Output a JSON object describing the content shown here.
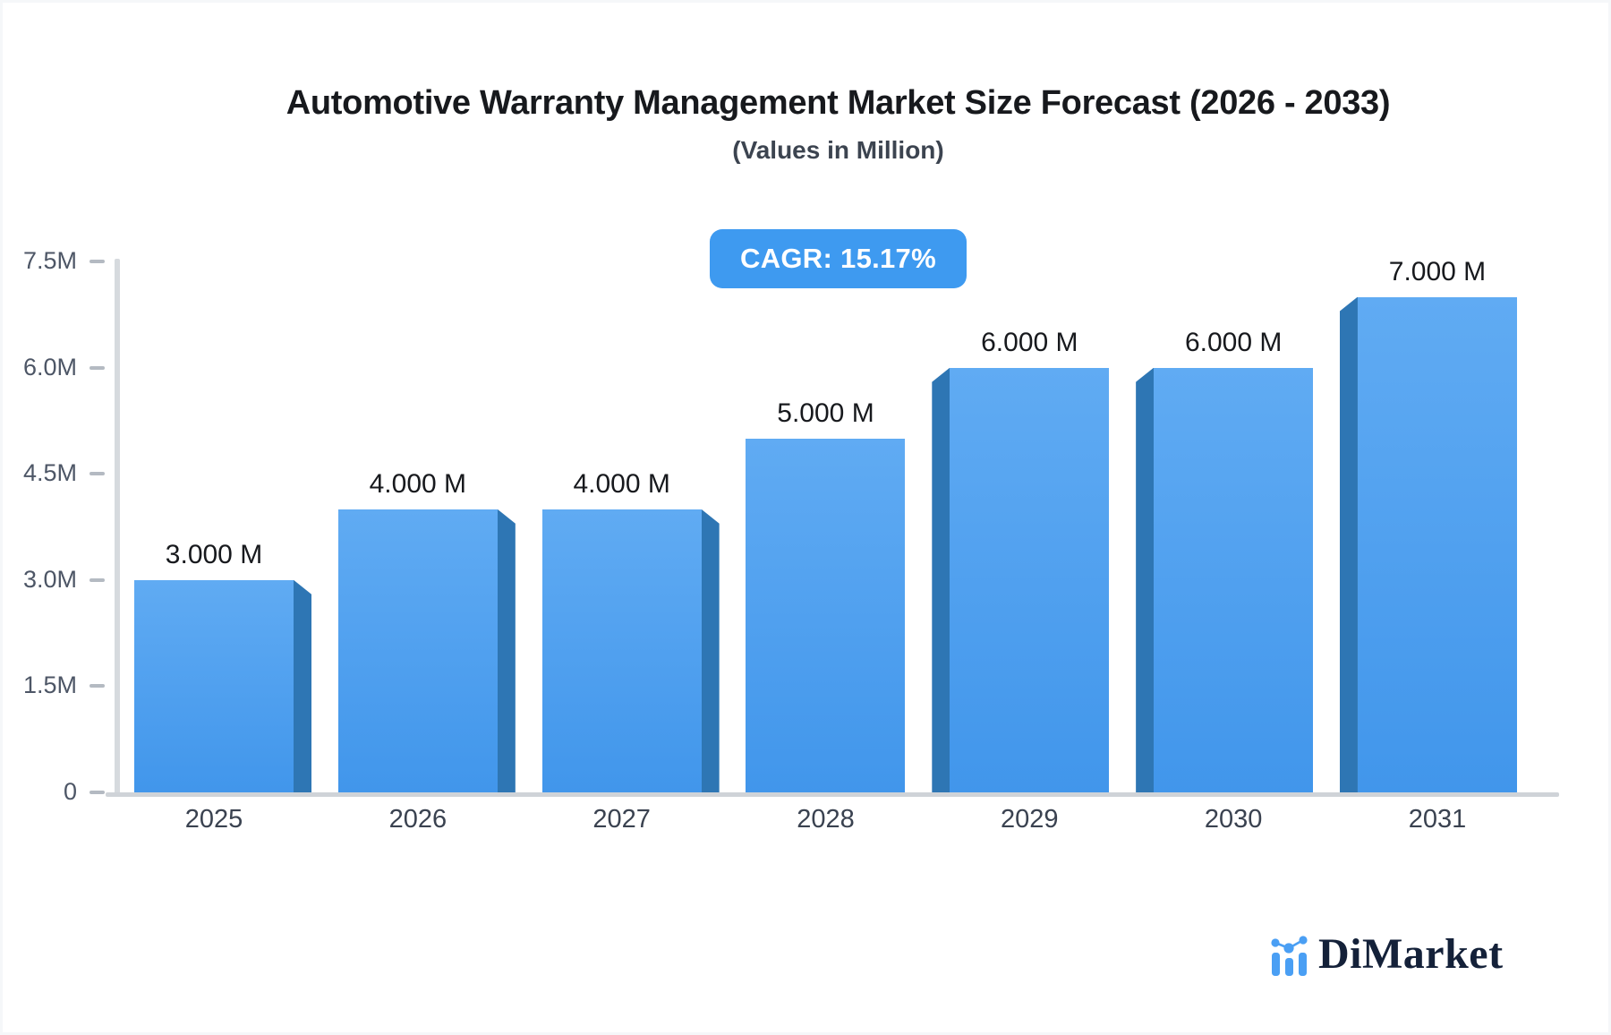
{
  "header": {
    "title": "Automotive Warranty Management Market Size Forecast (2026 - 2033)",
    "subtitle": "(Values in Million)",
    "cagr_badge": "CAGR: 15.17%"
  },
  "chart_data": {
    "type": "bar",
    "categories": [
      "2025",
      "2026",
      "2027",
      "2028",
      "2029",
      "2030",
      "2031"
    ],
    "values": [
      3,
      4,
      4,
      5,
      6,
      6,
      7
    ],
    "value_labels": [
      "3.000 M",
      "4.000 M",
      "4.000 M",
      "5.000 M",
      "6.000 M",
      "6.000 M",
      "7.000 M"
    ],
    "title": "Automotive Warranty Management Market Size Forecast (2026 - 2033)",
    "subtitle": "(Values in Million)",
    "xlabel": "",
    "ylabel": "",
    "unit": "Million",
    "ylim": [
      0,
      7.5
    ],
    "yticks": [
      {
        "label": "0",
        "value": 0
      },
      {
        "label": "1.5M",
        "value": 1.5
      },
      {
        "label": "3.0M",
        "value": 3
      },
      {
        "label": "4.5M",
        "value": 4.5
      },
      {
        "label": "6.0M",
        "value": 6
      },
      {
        "label": "7.5M",
        "value": 7.5
      }
    ],
    "grid": false,
    "legend": null,
    "annotations": [
      "CAGR: 15.17%"
    ]
  },
  "footer": {
    "logo_text": "DiMarket"
  },
  "colors": {
    "bar_face_top": "#60ABF3",
    "bar_face_bottom": "#4196EB",
    "bar_side": "#2E76B4",
    "badge_bg": "#3E9AF0",
    "badge_text": "#FFFFFF",
    "axis_line": "#D6DADE",
    "baseline": "#CFD3D8",
    "tick_dash": "#B4BAC2",
    "y_label": "#4D5666",
    "x_label": "#3A4250",
    "title_text": "#17191D",
    "logo_blue": "#4A9FF4",
    "logo_navy": "#142139"
  }
}
